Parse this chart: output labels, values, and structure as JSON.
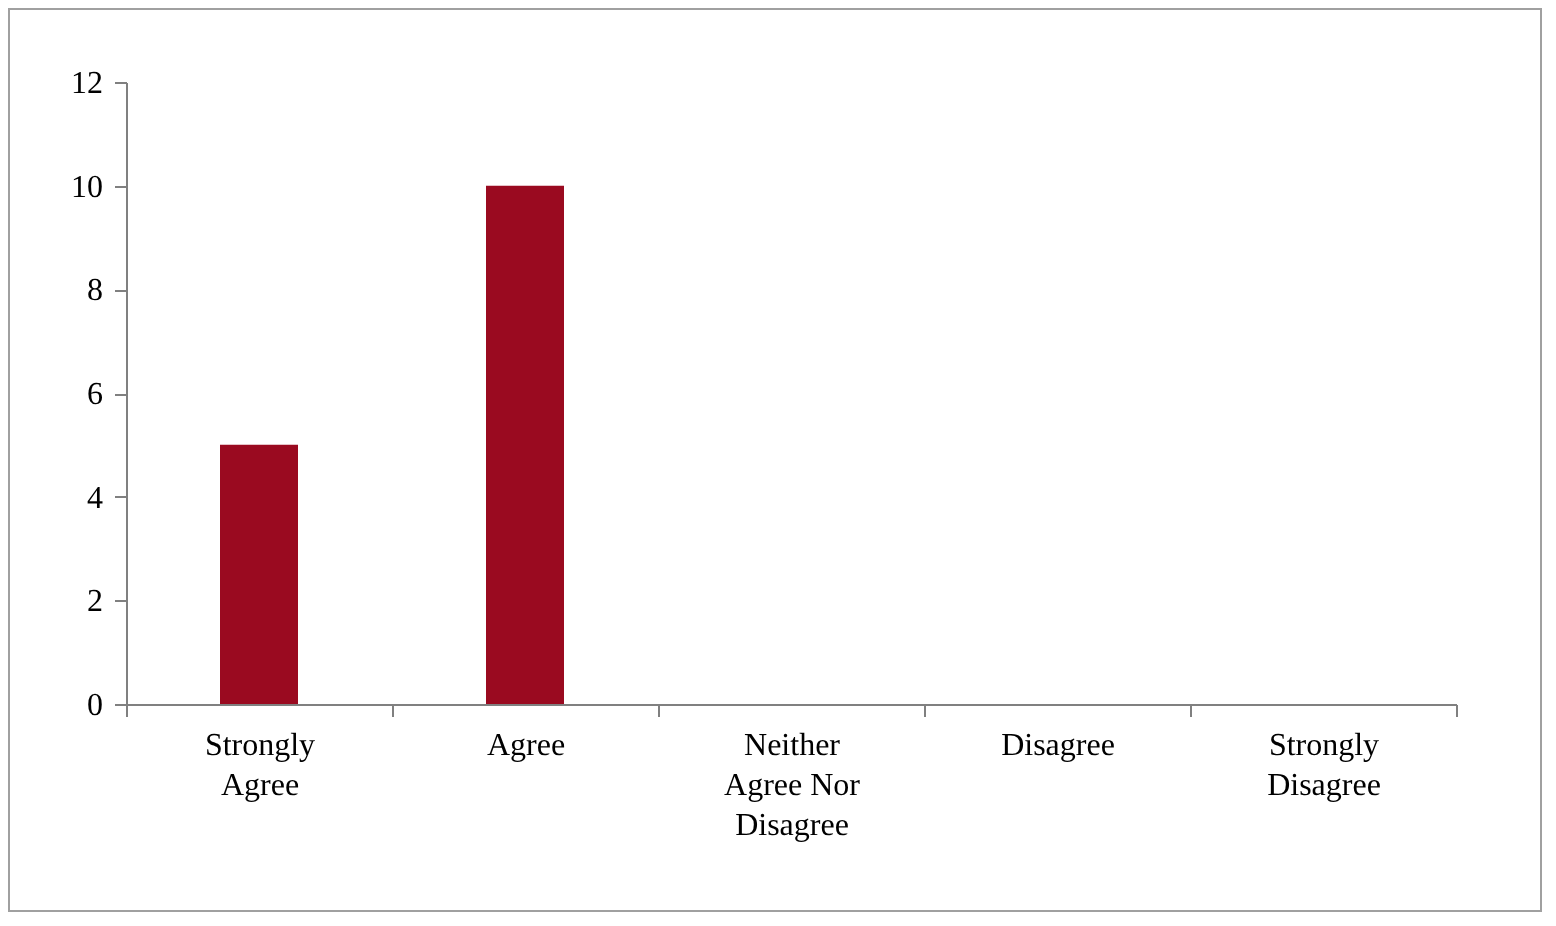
{
  "chart_data": {
    "type": "bar",
    "categories": [
      "Strongly Agree",
      "Agree",
      "Neither Agree Nor Disagree",
      "Disagree",
      "Strongly Disagree"
    ],
    "values": [
      5,
      10,
      0,
      0,
      0
    ],
    "color": "#9a0a20",
    "ylim": [
      0,
      12
    ],
    "yticks": [
      0,
      2,
      4,
      6,
      8,
      10,
      12
    ],
    "grid": false
  }
}
